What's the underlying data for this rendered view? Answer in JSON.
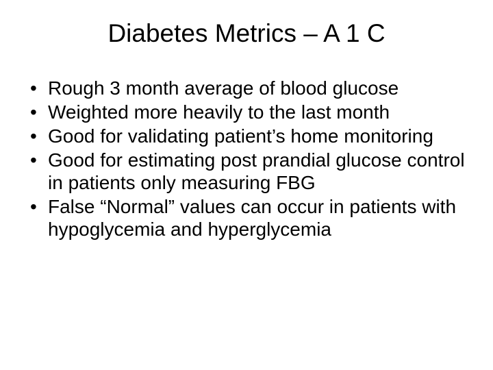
{
  "slide": {
    "title": "Diabetes Metrics – A 1 C",
    "title_fontsize": 37,
    "title_align": "center",
    "bullets": [
      "Rough 3 month average of blood glucose",
      "Weighted more heavily to the last month",
      "Good for validating patient’s home monitoring",
      "Good for estimating post prandial glucose control in patients only measuring FBG",
      "False “Normal” values can occur in patients with hypoglycemia and hyperglycemia"
    ],
    "bullet_fontsize": 28,
    "bullet_marker": "•",
    "background_color": "#ffffff",
    "text_color": "#000000",
    "font_family": "Arial"
  }
}
